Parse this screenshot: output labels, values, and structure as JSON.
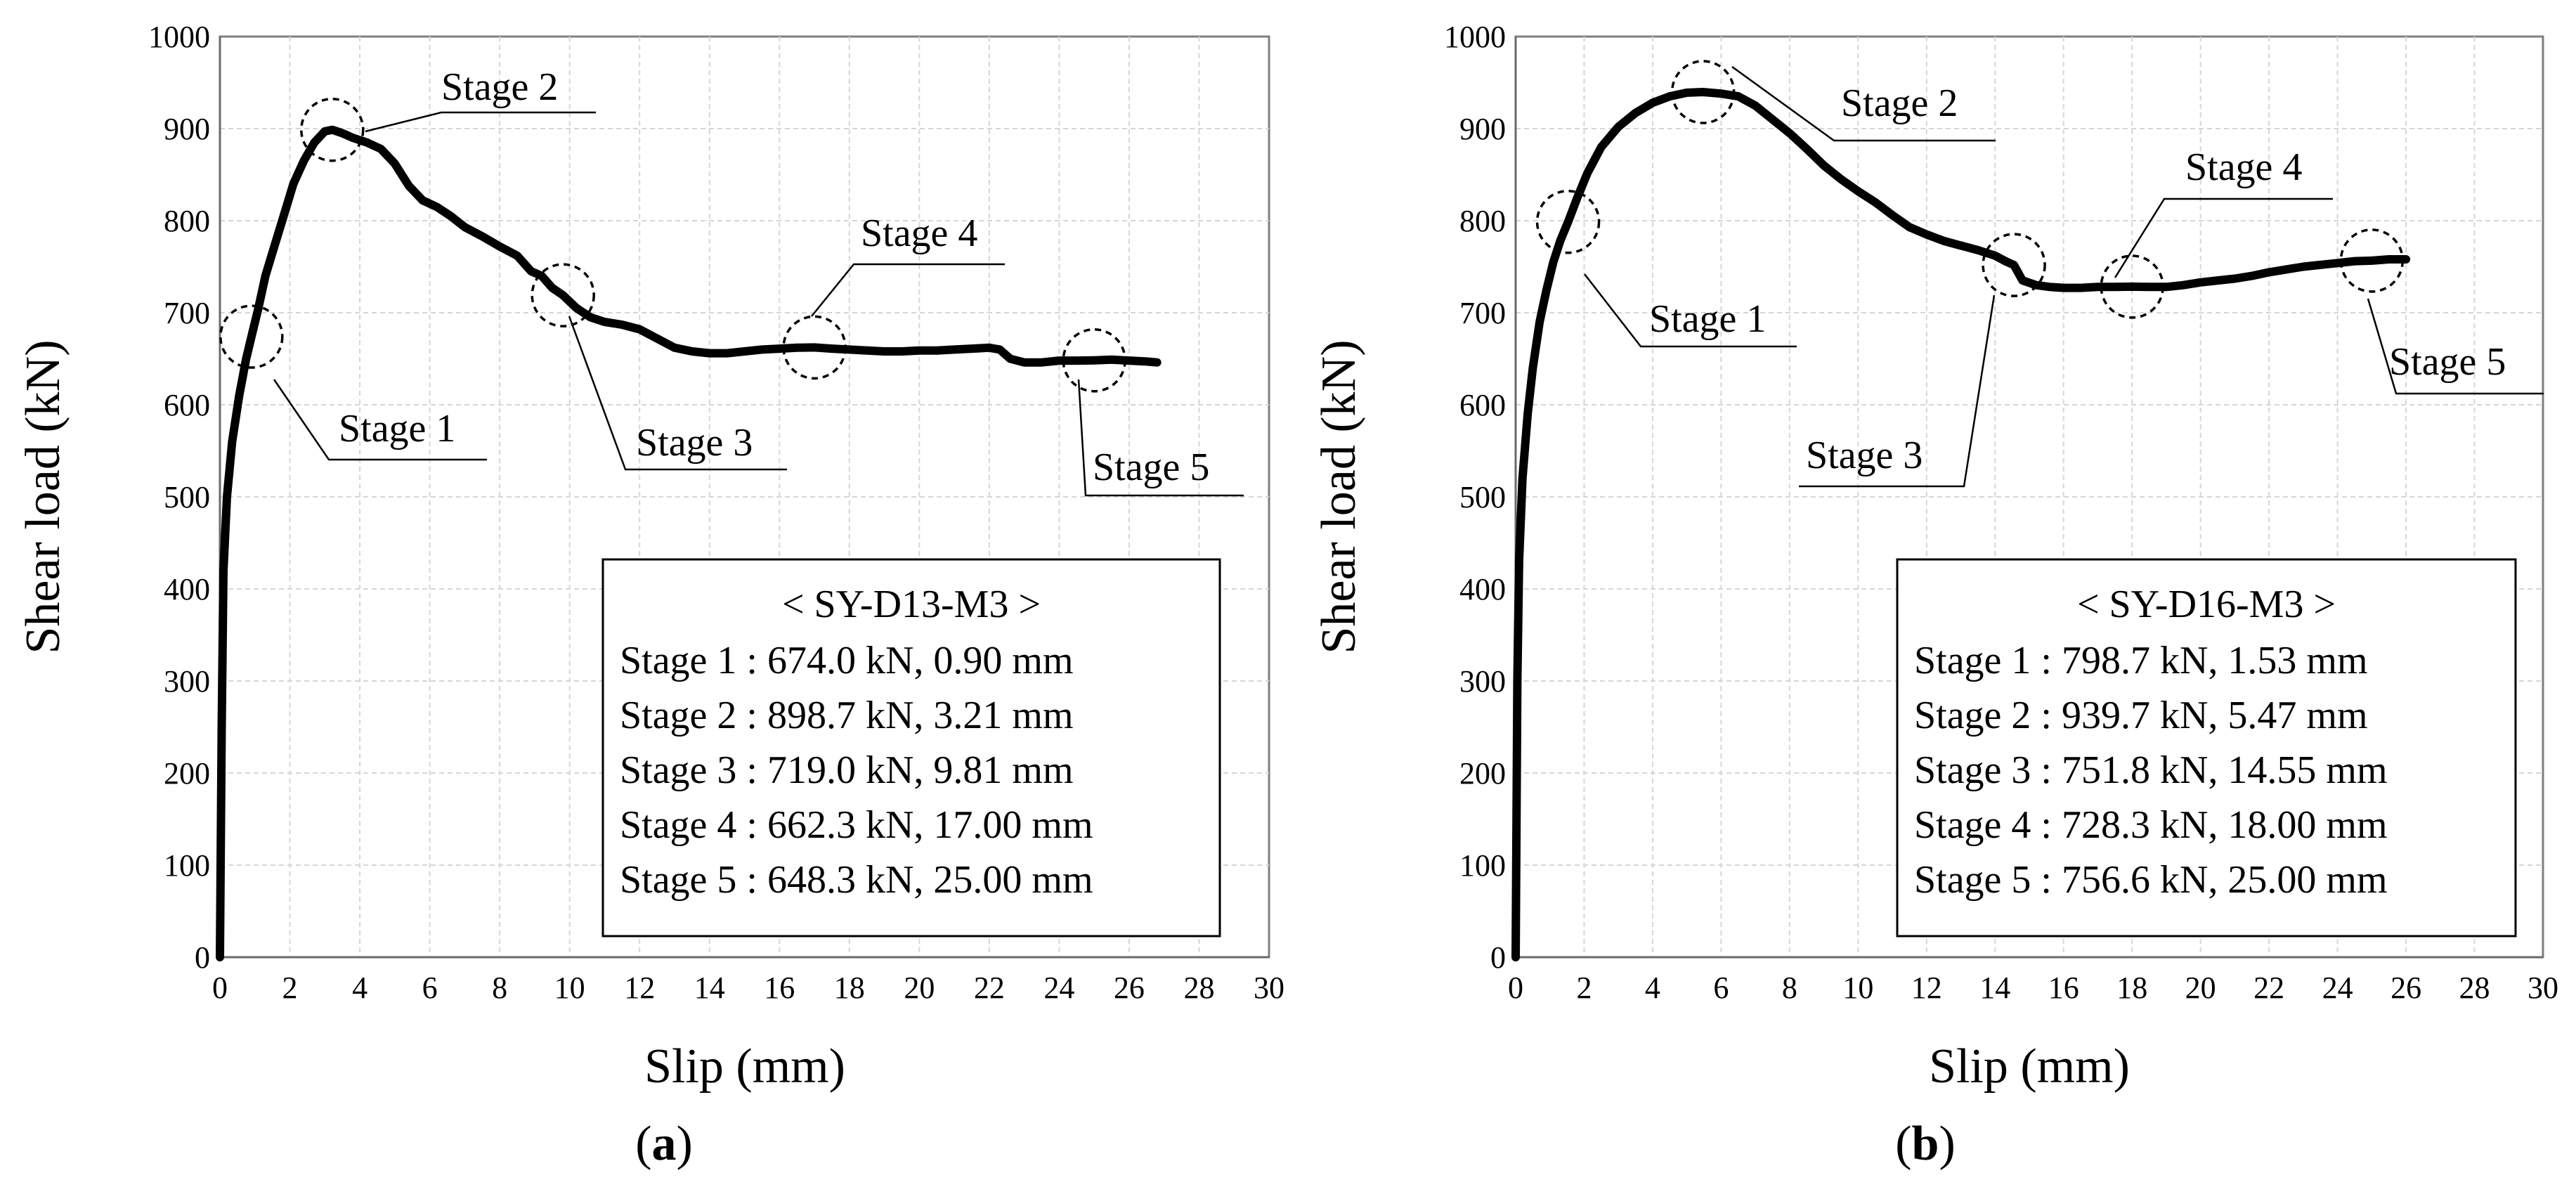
{
  "chart_data": [
    {
      "type": "line",
      "panel_prefix": "(",
      "panel": "a",
      "panel_suffix": ")",
      "xlabel": "Slip (mm)",
      "ylabel": "Shear load (kN)",
      "xlim": [
        0,
        30
      ],
      "ylim": [
        0,
        1000
      ],
      "x_ticks": [
        "0",
        "2",
        "4",
        "6",
        "8",
        "10",
        "12",
        "14",
        "16",
        "18",
        "20",
        "22",
        "24",
        "26",
        "28",
        "30"
      ],
      "y_ticks": [
        "0",
        "100",
        "200",
        "300",
        "400",
        "500",
        "600",
        "700",
        "800",
        "900",
        "1000"
      ],
      "grid": true,
      "series": [
        {
          "name": "SY-D13-M3",
          "x": [
            0,
            0.05,
            0.1,
            0.2,
            0.35,
            0.55,
            0.75,
            0.9,
            1.1,
            1.3,
            1.5,
            1.7,
            1.9,
            2.1,
            2.4,
            2.7,
            3.0,
            3.21,
            3.5,
            3.8,
            4.2,
            4.6,
            5.0,
            5.4,
            5.8,
            6.2,
            6.6,
            7.0,
            7.5,
            8.0,
            8.5,
            8.9,
            9.2,
            9.5,
            9.81,
            10.2,
            10.6,
            11.0,
            11.5,
            12.0,
            12.5,
            13.0,
            13.5,
            14.0,
            14.5,
            15.0,
            15.5,
            16.0,
            16.5,
            17.0,
            17.5,
            18.0,
            18.5,
            19.0,
            19.5,
            20.0,
            20.5,
            21.0,
            21.5,
            22.0,
            22.3,
            22.6,
            23.0,
            23.5,
            24.0,
            24.5,
            25.0,
            25.5,
            26.0,
            26.5,
            26.8
          ],
          "y": [
            0,
            250,
            420,
            500,
            560,
            610,
            650,
            674,
            705,
            740,
            765,
            790,
            815,
            840,
            865,
            885,
            897,
            898.7,
            895,
            890,
            885,
            878,
            862,
            838,
            822,
            815,
            805,
            793,
            783,
            772,
            762,
            745,
            740,
            727,
            719,
            705,
            695,
            690,
            687,
            682,
            672,
            662,
            658,
            656,
            656,
            658,
            660,
            661,
            662,
            662.3,
            661,
            660,
            659,
            658,
            658,
            659,
            659,
            660,
            661,
            662,
            660,
            650,
            646,
            646,
            648,
            648,
            648.3,
            649,
            648,
            647,
            646
          ]
        }
      ],
      "stages": [
        {
          "label": "Stage 1",
          "x": 0.9,
          "y": 674.0
        },
        {
          "label": "Stage 2",
          "x": 3.21,
          "y": 898.7
        },
        {
          "label": "Stage 3",
          "x": 9.81,
          "y": 719.0
        },
        {
          "label": "Stage 4",
          "x": 17.0,
          "y": 662.3
        },
        {
          "label": "Stage 5",
          "x": 25.0,
          "y": 648.3
        }
      ],
      "info": {
        "title": "< SY-D13-M3 >",
        "lines": [
          "Stage 1 : 674.0 kN, 0.90 mm",
          "Stage 2 : 898.7 kN, 3.21 mm",
          "Stage 3 : 719.0 kN, 9.81 mm",
          "Stage 4 : 662.3 kN, 17.00 mm",
          "Stage 5 : 648.3 kN, 25.00 mm"
        ]
      }
    },
    {
      "type": "line",
      "panel_prefix": "(",
      "panel": "b",
      "panel_suffix": ")",
      "xlabel": "Slip (mm)",
      "ylabel": "Shear load (kN)",
      "xlim": [
        0,
        30
      ],
      "ylim": [
        0,
        1000
      ],
      "x_ticks": [
        "0",
        "2",
        "4",
        "6",
        "8",
        "10",
        "12",
        "14",
        "16",
        "18",
        "20",
        "22",
        "24",
        "26",
        "28",
        "30"
      ],
      "y_ticks": [
        "0",
        "100",
        "200",
        "300",
        "400",
        "500",
        "600",
        "700",
        "800",
        "900",
        "1000"
      ],
      "grid": true,
      "series": [
        {
          "name": "SY-D16-M3",
          "x": [
            0,
            0.05,
            0.1,
            0.2,
            0.35,
            0.5,
            0.7,
            0.9,
            1.1,
            1.3,
            1.53,
            1.8,
            2.1,
            2.5,
            3.0,
            3.5,
            4.0,
            4.5,
            5.0,
            5.47,
            6.0,
            6.5,
            7.0,
            7.5,
            8.0,
            8.5,
            9.0,
            9.5,
            10.0,
            10.5,
            11.0,
            11.5,
            12.0,
            12.5,
            13.0,
            13.5,
            14.0,
            14.3,
            14.55,
            14.8,
            15.2,
            15.6,
            16.0,
            16.5,
            17.0,
            17.5,
            18.0,
            18.5,
            19.0,
            19.5,
            20.0,
            20.5,
            21.0,
            21.5,
            22.0,
            22.5,
            23.0,
            23.5,
            24.0,
            24.5,
            25.0,
            25.5,
            26.0
          ],
          "y": [
            0,
            300,
            430,
            520,
            590,
            640,
            690,
            725,
            755,
            778,
            798.7,
            825,
            852,
            880,
            902,
            917,
            928,
            935,
            939,
            939.7,
            938,
            935,
            925,
            910,
            895,
            878,
            860,
            845,
            832,
            820,
            806,
            793,
            785,
            778,
            773,
            768,
            762,
            756,
            751.8,
            735,
            730,
            728,
            727,
            727,
            728,
            728,
            728.3,
            728,
            728,
            730,
            733,
            735,
            737,
            740,
            744,
            747,
            750,
            752,
            754,
            756,
            756.6,
            758,
            758
          ]
        }
      ],
      "stages": [
        {
          "label": "Stage 1",
          "x": 1.53,
          "y": 798.7
        },
        {
          "label": "Stage 2",
          "x": 5.47,
          "y": 939.7
        },
        {
          "label": "Stage 3",
          "x": 14.55,
          "y": 751.8
        },
        {
          "label": "Stage 4",
          "x": 18.0,
          "y": 728.3
        },
        {
          "label": "Stage 5",
          "x": 25.0,
          "y": 756.6
        }
      ],
      "info": {
        "title": "< SY-D16-M3 >",
        "lines": [
          "Stage 1 : 798.7 kN, 1.53 mm",
          "Stage 2 : 939.7 kN, 5.47 mm",
          "Stage 3 : 751.8 kN, 14.55 mm",
          "Stage 4 : 728.3 kN, 18.00 mm",
          "Stage 5 : 756.6 kN, 25.00 mm"
        ]
      }
    }
  ]
}
